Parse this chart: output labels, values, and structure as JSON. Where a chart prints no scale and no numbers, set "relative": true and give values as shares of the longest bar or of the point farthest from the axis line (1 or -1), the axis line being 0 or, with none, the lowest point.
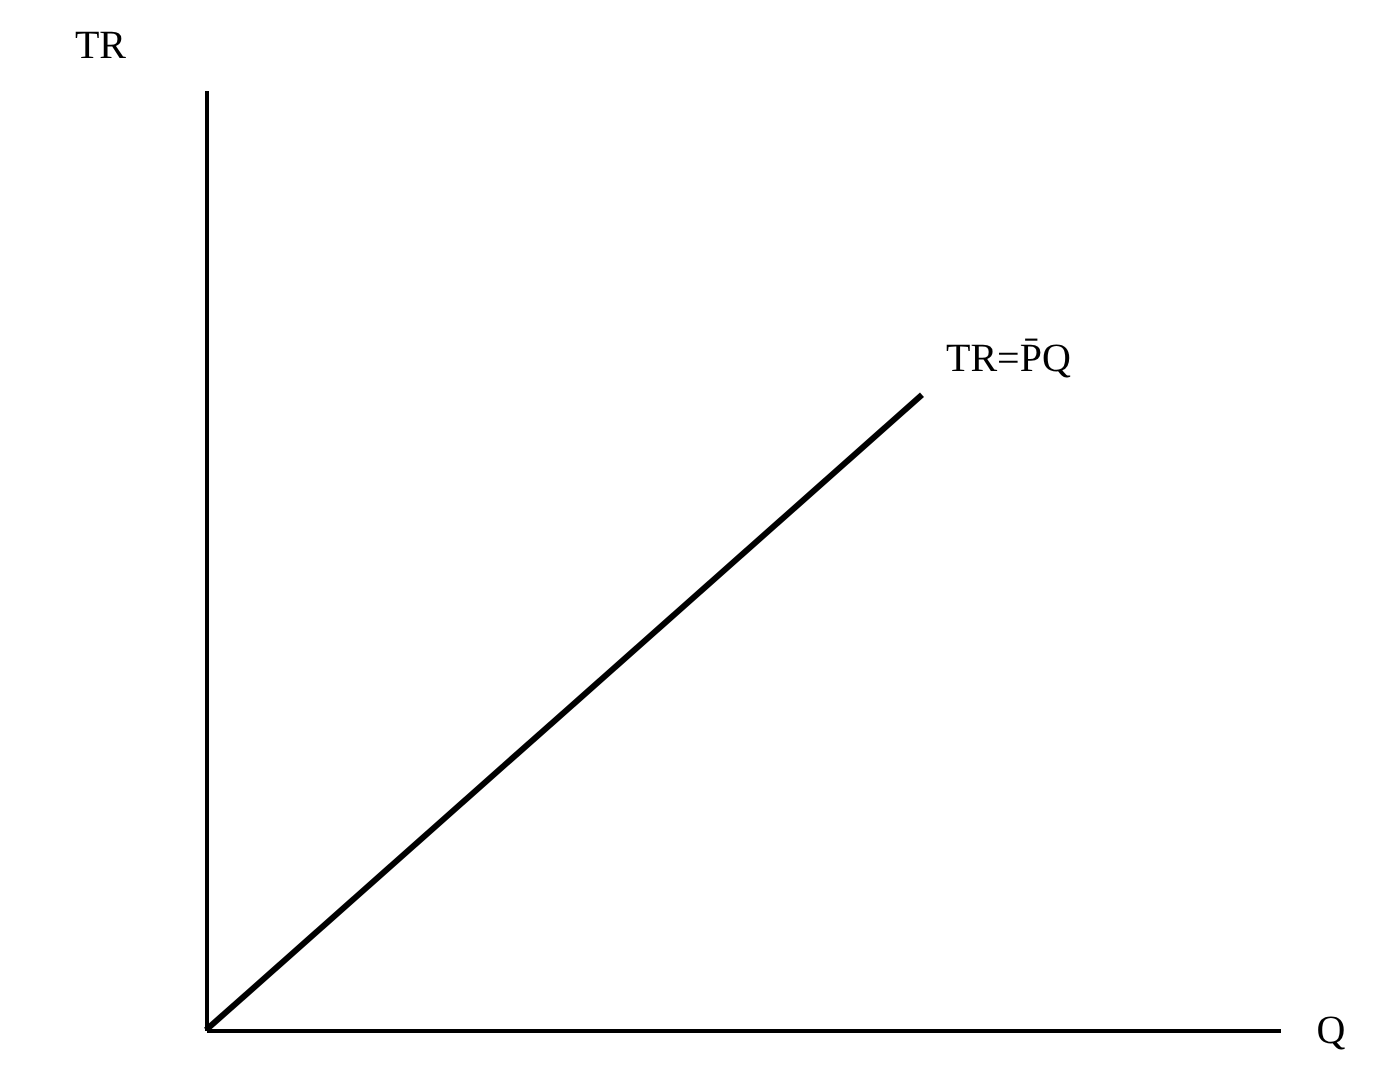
{
  "chart_data": {
    "type": "line",
    "relative": true,
    "xlabel": "Q",
    "categories": [
      null,
      null,
      null,
      null
    ],
    "series": [
      {
        "color": "#000000",
        "values": [
          0,
          0.5,
          1,
          null
        ]
      }
    ],
    "annotations": [
      "TR",
      "TR=P̄Q"
    ],
    "legend": false,
    "marker": "none",
    "line_style": "solid"
  }
}
